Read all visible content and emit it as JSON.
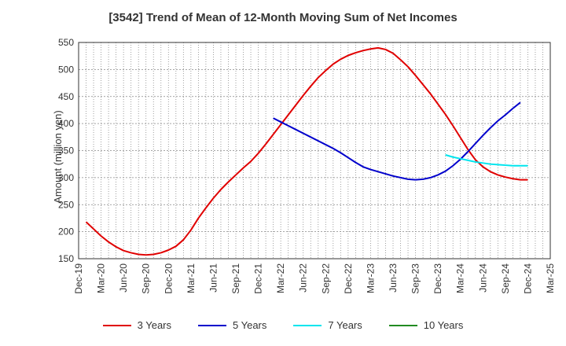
{
  "chart_data": {
    "type": "line",
    "title": "[3542]  Trend of Mean of 12-Month Moving Sum of Net Incomes",
    "ylabel": "Amount (million yen)",
    "xlabel": "",
    "ylim": [
      150,
      550
    ],
    "yticks": [
      150,
      200,
      250,
      300,
      350,
      400,
      450,
      500,
      550
    ],
    "xlim": [
      "2019-12",
      "2025-03"
    ],
    "xticks": [
      "Dec-19",
      "Mar-20",
      "Jun-20",
      "Sep-20",
      "Dec-20",
      "Mar-21",
      "Jun-21",
      "Sep-21",
      "Dec-21",
      "Mar-22",
      "Jun-22",
      "Sep-22",
      "Dec-22",
      "Mar-23",
      "Jun-23",
      "Sep-23",
      "Dec-23",
      "Mar-24",
      "Jun-24",
      "Sep-24",
      "Dec-24",
      "Mar-25"
    ],
    "grid": true,
    "legend_position": "bottom",
    "series": [
      {
        "name": "3 Years",
        "color": "#e00000",
        "points": [
          [
            "2020-01",
            218
          ],
          [
            "2020-02",
            205
          ],
          [
            "2020-03",
            192
          ],
          [
            "2020-04",
            181
          ],
          [
            "2020-05",
            172
          ],
          [
            "2020-06",
            165
          ],
          [
            "2020-07",
            161
          ],
          [
            "2020-08",
            158
          ],
          [
            "2020-09",
            157
          ],
          [
            "2020-10",
            158
          ],
          [
            "2020-11",
            161
          ],
          [
            "2020-12",
            166
          ],
          [
            "2021-01",
            173
          ],
          [
            "2021-02",
            185
          ],
          [
            "2021-03",
            203
          ],
          [
            "2021-04",
            225
          ],
          [
            "2021-05",
            244
          ],
          [
            "2021-06",
            262
          ],
          [
            "2021-07",
            278
          ],
          [
            "2021-08",
            292
          ],
          [
            "2021-09",
            305
          ],
          [
            "2021-10",
            318
          ],
          [
            "2021-11",
            330
          ],
          [
            "2021-12",
            345
          ],
          [
            "2022-01",
            362
          ],
          [
            "2022-02",
            380
          ],
          [
            "2022-03",
            398
          ],
          [
            "2022-04",
            416
          ],
          [
            "2022-05",
            434
          ],
          [
            "2022-06",
            452
          ],
          [
            "2022-07",
            469
          ],
          [
            "2022-08",
            485
          ],
          [
            "2022-09",
            498
          ],
          [
            "2022-10",
            510
          ],
          [
            "2022-11",
            519
          ],
          [
            "2022-12",
            526
          ],
          [
            "2023-01",
            531
          ],
          [
            "2023-02",
            535
          ],
          [
            "2023-03",
            538
          ],
          [
            "2023-04",
            540
          ],
          [
            "2023-05",
            537
          ],
          [
            "2023-06",
            530
          ],
          [
            "2023-07",
            518
          ],
          [
            "2023-08",
            505
          ],
          [
            "2023-09",
            489
          ],
          [
            "2023-10",
            472
          ],
          [
            "2023-11",
            455
          ],
          [
            "2023-12",
            436
          ],
          [
            "2024-01",
            417
          ],
          [
            "2024-02",
            396
          ],
          [
            "2024-03",
            374
          ],
          [
            "2024-04",
            352
          ],
          [
            "2024-05",
            333
          ],
          [
            "2024-06",
            320
          ],
          [
            "2024-07",
            311
          ],
          [
            "2024-08",
            305
          ],
          [
            "2024-09",
            301
          ],
          [
            "2024-10",
            298
          ],
          [
            "2024-11",
            296
          ],
          [
            "2024-12",
            296
          ]
        ]
      },
      {
        "name": "5 Years",
        "color": "#0000cc",
        "points": [
          [
            "2022-02",
            410
          ],
          [
            "2022-03",
            403
          ],
          [
            "2022-04",
            396
          ],
          [
            "2022-05",
            389
          ],
          [
            "2022-06",
            382
          ],
          [
            "2022-07",
            375
          ],
          [
            "2022-08",
            368
          ],
          [
            "2022-09",
            361
          ],
          [
            "2022-10",
            354
          ],
          [
            "2022-11",
            346
          ],
          [
            "2022-12",
            337
          ],
          [
            "2023-01",
            328
          ],
          [
            "2023-02",
            320
          ],
          [
            "2023-03",
            315
          ],
          [
            "2023-04",
            311
          ],
          [
            "2023-05",
            307
          ],
          [
            "2023-06",
            303
          ],
          [
            "2023-07",
            300
          ],
          [
            "2023-08",
            297
          ],
          [
            "2023-09",
            296
          ],
          [
            "2023-10",
            297
          ],
          [
            "2023-11",
            300
          ],
          [
            "2023-12",
            305
          ],
          [
            "2024-01",
            312
          ],
          [
            "2024-02",
            322
          ],
          [
            "2024-03",
            334
          ],
          [
            "2024-04",
            348
          ],
          [
            "2024-05",
            363
          ],
          [
            "2024-06",
            378
          ],
          [
            "2024-07",
            392
          ],
          [
            "2024-08",
            405
          ],
          [
            "2024-09",
            416
          ],
          [
            "2024-10",
            428
          ],
          [
            "2024-11",
            439
          ]
        ]
      },
      {
        "name": "7 Years",
        "color": "#00e5ee",
        "points": [
          [
            "2024-01",
            342
          ],
          [
            "2024-02",
            338
          ],
          [
            "2024-03",
            335
          ],
          [
            "2024-04",
            332
          ],
          [
            "2024-05",
            329
          ],
          [
            "2024-06",
            327
          ],
          [
            "2024-07",
            325
          ],
          [
            "2024-08",
            324
          ],
          [
            "2024-09",
            323
          ],
          [
            "2024-10",
            322
          ],
          [
            "2024-11",
            322
          ],
          [
            "2024-12",
            322
          ]
        ]
      },
      {
        "name": "10 Years",
        "color": "#228b22",
        "points": []
      }
    ]
  }
}
